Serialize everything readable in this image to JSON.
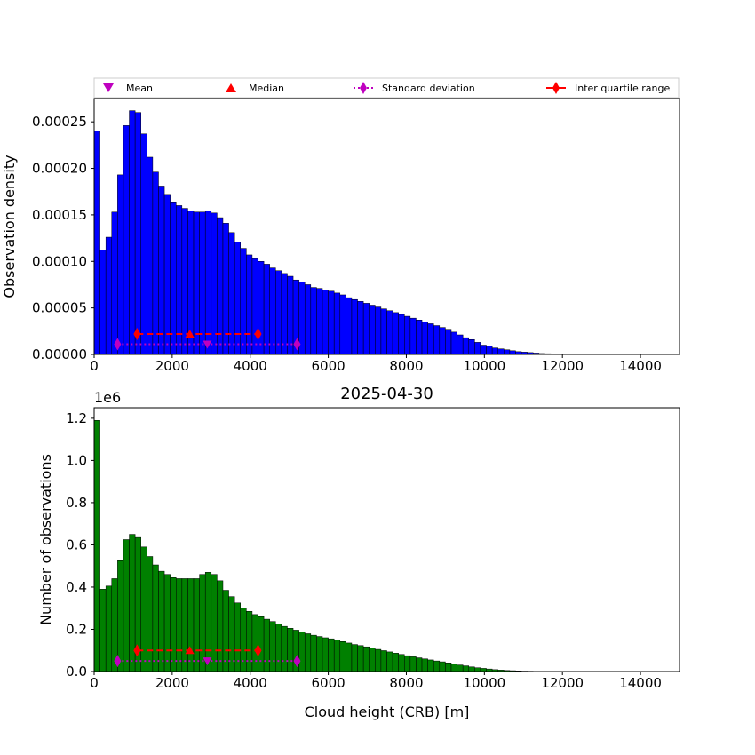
{
  "figure": {
    "colors": {
      "top_bars": "#0000ff",
      "bottom_bars": "#008000",
      "mean": "#bf00bf",
      "median": "#ff0000",
      "std": "#bf00bf",
      "iqr": "#ff0000",
      "edge": "#000000"
    }
  },
  "legend": {
    "placement": "top, above first plot",
    "entries": [
      {
        "label": "Mean",
        "marker": "triangle-down",
        "color": "#bf00bf"
      },
      {
        "label": "Median",
        "marker": "triangle-up",
        "color": "#ff0000"
      },
      {
        "label": "Standard deviation",
        "marker": "diamond-dotted",
        "color": "#bf00bf"
      },
      {
        "label": "Inter quartile range",
        "marker": "diamond-dashed",
        "color": "#ff0000"
      }
    ]
  },
  "chart_data": [
    {
      "type": "bar",
      "title": "",
      "xlabel": "",
      "ylabel": "Observation density",
      "xlim": [
        0,
        15000
      ],
      "ylim": [
        0,
        0.000275
      ],
      "bin_width": 150,
      "xticks": [
        0,
        2000,
        4000,
        6000,
        8000,
        10000,
        12000,
        14000
      ],
      "xtick_labels": [
        "0",
        "2000",
        "4000",
        "6000",
        "8000",
        "10000",
        "12000",
        "14000"
      ],
      "yticks": [
        0,
        5e-05,
        0.0001,
        0.00015,
        0.0002,
        0.00025
      ],
      "ytick_labels": [
        "0.00000",
        "0.00005",
        "0.00010",
        "0.00015",
        "0.00020",
        "0.00025"
      ],
      "bin_starts": [
        0,
        150,
        300,
        450,
        600,
        750,
        900,
        1050,
        1200,
        1350,
        1500,
        1650,
        1800,
        1950,
        2100,
        2250,
        2400,
        2550,
        2700,
        2850,
        3000,
        3150,
        3300,
        3450,
        3600,
        3750,
        3900,
        4050,
        4200,
        4350,
        4500,
        4650,
        4800,
        4950,
        5100,
        5250,
        5400,
        5550,
        5700,
        5850,
        6000,
        6150,
        6300,
        6450,
        6600,
        6750,
        6900,
        7050,
        7200,
        7350,
        7500,
        7650,
        7800,
        7950,
        8100,
        8250,
        8400,
        8550,
        8700,
        8850,
        9000,
        9150,
        9300,
        9450,
        9600,
        9750,
        9900,
        10050,
        10200,
        10350,
        10500,
        10650,
        10800,
        10950,
        11100,
        11250,
        11400,
        11550,
        11700,
        11850,
        12000,
        12150,
        12300,
        12450,
        12600,
        12750,
        12900,
        13050,
        13200,
        13350,
        13500,
        13650,
        13800,
        13950,
        14100,
        14250,
        14400,
        14550,
        14700,
        14850
      ],
      "values": [
        0.00024,
        0.000112,
        0.000126,
        0.000153,
        0.000193,
        0.000246,
        0.000262,
        0.00026,
        0.000237,
        0.000212,
        0.000196,
        0.000181,
        0.000172,
        0.000164,
        0.00016,
        0.000157,
        0.000154,
        0.000153,
        0.000153,
        0.000154,
        0.000152,
        0.000147,
        0.000141,
        0.000131,
        0.000121,
        0.000114,
        0.000107,
        0.000103,
        0.0001,
        9.7e-05,
        9.3e-05,
        9e-05,
        8.7e-05,
        8.4e-05,
        8e-05,
        7.8e-05,
        7.5e-05,
        7.2e-05,
        7.1e-05,
        6.9e-05,
        6.8e-05,
        6.6e-05,
        6.4e-05,
        6.1e-05,
        5.9e-05,
        5.7e-05,
        5.5e-05,
        5.3e-05,
        5.1e-05,
        4.9e-05,
        4.7e-05,
        4.5e-05,
        4.3e-05,
        4.1e-05,
        3.9e-05,
        3.7e-05,
        3.5e-05,
        3.3e-05,
        3.1e-05,
        2.9e-05,
        2.7e-05,
        2.4e-05,
        2.1e-05,
        1.8e-05,
        1.6e-05,
        1.3e-05,
        1e-05,
        9e-06,
        7e-06,
        6e-06,
        5e-06,
        4e-06,
        3e-06,
        2.5e-06,
        2e-06,
        1.5e-06,
        1e-06,
        8e-07,
        6e-07,
        4e-07,
        3e-07,
        2e-07,
        2e-07,
        1e-07,
        1e-07,
        1e-07,
        1e-07,
        1e-07,
        1e-07,
        1e-07,
        1e-07,
        1e-07,
        1e-07,
        1e-07,
        1e-07,
        1e-07,
        1e-07,
        1e-07,
        1e-07,
        1e-07
      ],
      "stats": {
        "mean": {
          "x": 2900,
          "y": 1.1e-05
        },
        "median": {
          "x": 2450,
          "y": 2.2e-05
        },
        "std": {
          "x": [
            600,
            5200
          ],
          "y": 1.1e-05
        },
        "iqr": {
          "x": [
            1100,
            4200
          ],
          "y": 2.2e-05
        }
      }
    },
    {
      "type": "bar",
      "title": "2025-04-30",
      "xlabel": "Cloud height (CRB) [m]",
      "ylabel": "Number of observations",
      "offset_label": "1e6",
      "xlim": [
        0,
        15000
      ],
      "ylim": [
        0,
        1250000
      ],
      "bin_width": 150,
      "xticks": [
        0,
        2000,
        4000,
        6000,
        8000,
        10000,
        12000,
        14000
      ],
      "xtick_labels": [
        "0",
        "2000",
        "4000",
        "6000",
        "8000",
        "10000",
        "12000",
        "14000"
      ],
      "yticks": [
        0,
        200000,
        400000,
        600000,
        800000,
        1000000,
        1200000
      ],
      "ytick_labels": [
        "0.0",
        "0.2",
        "0.4",
        "0.6",
        "0.8",
        "1.0",
        "1.2"
      ],
      "bin_starts": [
        0,
        150,
        300,
        450,
        600,
        750,
        900,
        1050,
        1200,
        1350,
        1500,
        1650,
        1800,
        1950,
        2100,
        2250,
        2400,
        2550,
        2700,
        2850,
        3000,
        3150,
        3300,
        3450,
        3600,
        3750,
        3900,
        4050,
        4200,
        4350,
        4500,
        4650,
        4800,
        4950,
        5100,
        5250,
        5400,
        5550,
        5700,
        5850,
        6000,
        6150,
        6300,
        6450,
        6600,
        6750,
        6900,
        7050,
        7200,
        7350,
        7500,
        7650,
        7800,
        7950,
        8100,
        8250,
        8400,
        8550,
        8700,
        8850,
        9000,
        9150,
        9300,
        9450,
        9600,
        9750,
        9900,
        10050,
        10200,
        10350,
        10500,
        10650,
        10800,
        10950,
        11100,
        11250,
        11400,
        11550,
        11700,
        11850,
        12000,
        12150,
        12300,
        12450,
        12600,
        12750,
        12900,
        13050,
        13200,
        13350,
        13500,
        13650,
        13800,
        13950,
        14100,
        14250,
        14400,
        14550,
        14700,
        14850
      ],
      "values": [
        1190000,
        390000,
        405000,
        440000,
        525000,
        625000,
        650000,
        635000,
        590000,
        545000,
        505000,
        475000,
        460000,
        445000,
        440000,
        440000,
        440000,
        440000,
        460000,
        470000,
        460000,
        430000,
        385000,
        355000,
        325000,
        300000,
        285000,
        270000,
        260000,
        248000,
        237000,
        225000,
        214000,
        205000,
        196000,
        187000,
        179000,
        172000,
        166000,
        160000,
        155000,
        150000,
        142000,
        135000,
        128000,
        123000,
        117000,
        111000,
        105000,
        99000,
        93000,
        87000,
        81000,
        75000,
        70000,
        65000,
        60000,
        55000,
        50000,
        46000,
        41000,
        36000,
        31000,
        27000,
        22000,
        18000,
        15000,
        12000,
        9000,
        7000,
        5000,
        4000,
        3000,
        2000,
        1500,
        1000,
        800,
        600,
        400,
        300,
        200,
        150,
        100,
        100,
        80,
        60,
        50,
        50,
        40,
        40,
        30,
        30,
        30,
        20,
        20,
        20,
        20,
        20,
        20,
        20
      ],
      "stats": {
        "mean": {
          "x": 2900,
          "y": 50000
        },
        "median": {
          "x": 2450,
          "y": 100000
        },
        "std": {
          "x": [
            600,
            5200
          ],
          "y": 50000
        },
        "iqr": {
          "x": [
            1100,
            4200
          ],
          "y": 100000
        }
      }
    }
  ]
}
